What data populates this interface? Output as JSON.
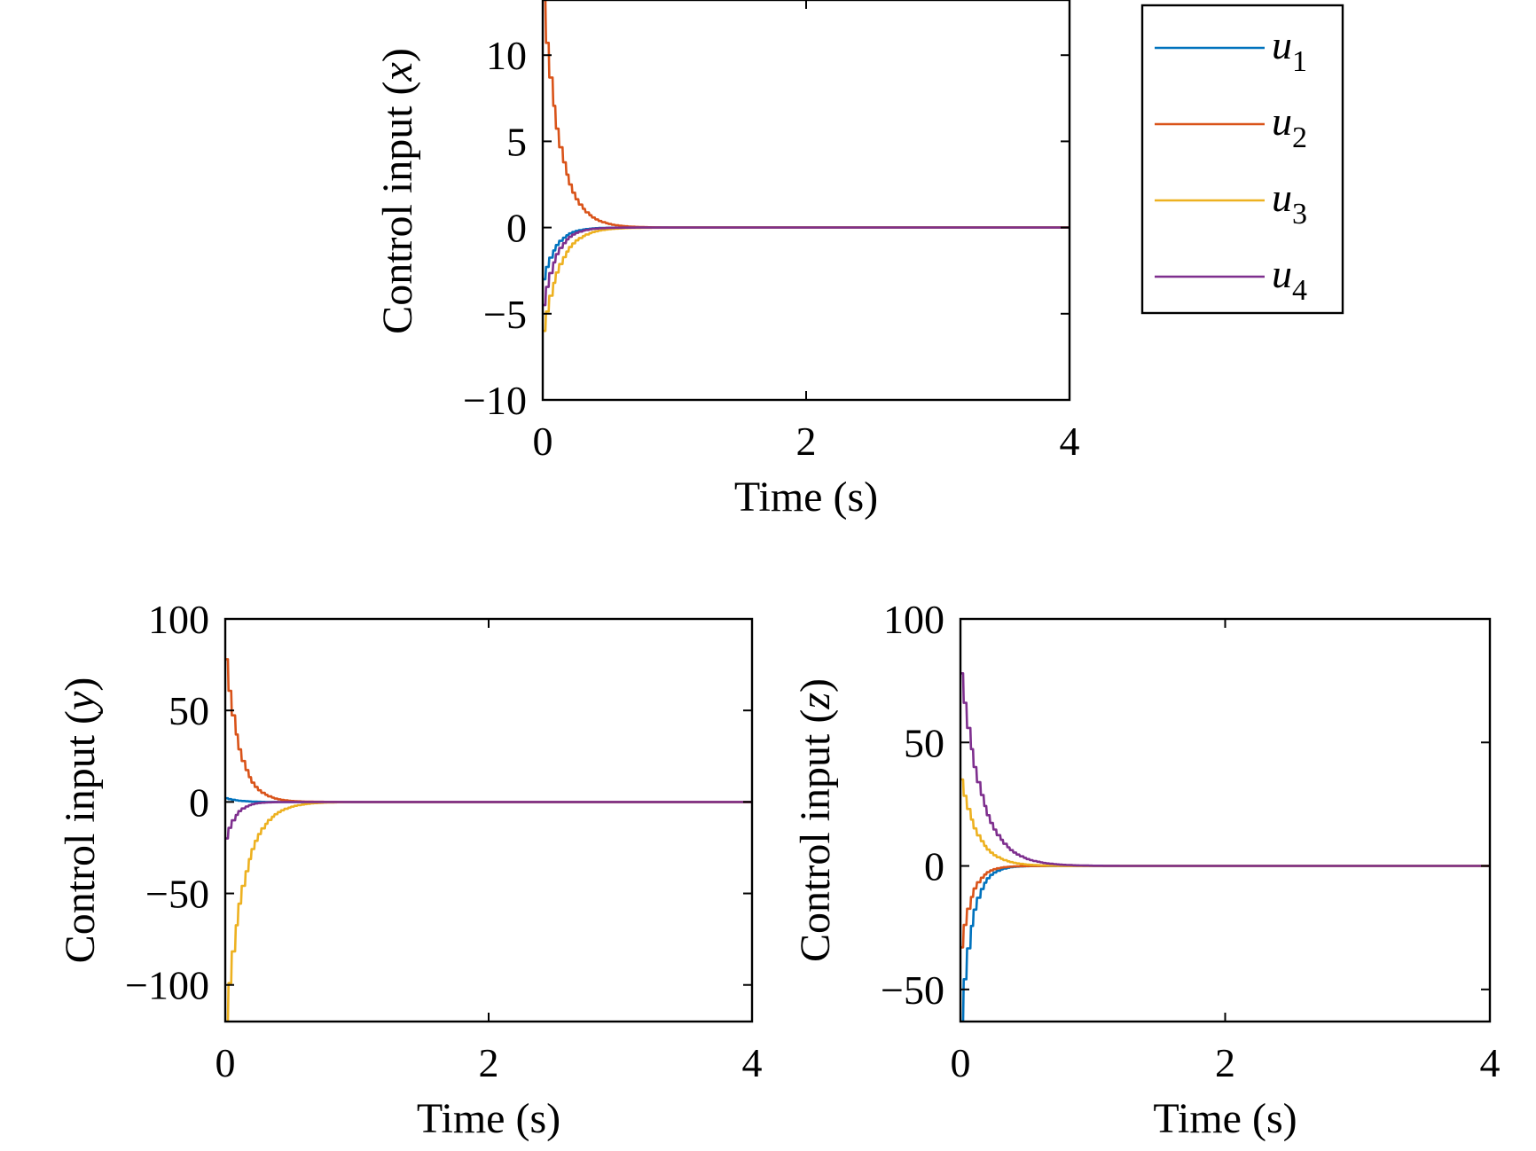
{
  "chart_data": [
    {
      "type": "line",
      "panel": "x",
      "xlabel": "Time (s)",
      "ylabel": "Control input (x)",
      "ylabel_parts": [
        "Control input (",
        "x",
        ")"
      ],
      "xlim": [
        0,
        4
      ],
      "ylim": [
        -10,
        13.2
      ],
      "xticks": [
        0,
        2,
        4
      ],
      "yticks": [
        -10,
        -5,
        0,
        5,
        10
      ],
      "xtick_labels": [
        "0",
        "2",
        "4"
      ],
      "ytick_labels": [
        "−10",
        "−5",
        "0",
        "5",
        "10"
      ],
      "grid": false,
      "series": [
        {
          "name": "u1",
          "initial": -3.0,
          "tau": 0.1,
          "overshoot": 0.25
        },
        {
          "name": "u2",
          "initial": 13.2,
          "tau": 0.12,
          "overshoot": 0.0
        },
        {
          "name": "u3",
          "initial": -6.0,
          "tau": 0.12,
          "overshoot": 0.0
        },
        {
          "name": "u4",
          "initial": -4.5,
          "tau": 0.1,
          "overshoot": 0.3
        }
      ]
    },
    {
      "type": "line",
      "panel": "y",
      "xlabel": "Time (s)",
      "ylabel": "Control input (y)",
      "ylabel_parts": [
        "Control input (",
        "y",
        ")"
      ],
      "xlim": [
        0,
        4
      ],
      "ylim": [
        -120,
        100
      ],
      "xticks": [
        0,
        2,
        4
      ],
      "yticks": [
        -100,
        -50,
        0,
        50,
        100
      ],
      "xtick_labels": [
        "0",
        "2",
        "4"
      ],
      "ytick_labels": [
        "−100",
        "−50",
        "0",
        "50",
        "100"
      ],
      "grid": false,
      "series": [
        {
          "name": "u1",
          "initial": 2.0,
          "tau": 0.15,
          "overshoot": 1.0
        },
        {
          "name": "u2",
          "initial": 78.0,
          "tau": 0.1,
          "overshoot": 0.0
        },
        {
          "name": "u3",
          "initial": -120.0,
          "tau": 0.13,
          "overshoot": 0.0
        },
        {
          "name": "u4",
          "initial": -20.0,
          "tau": 0.08,
          "overshoot": 2.0
        }
      ]
    },
    {
      "type": "line",
      "panel": "z",
      "xlabel": "Time (s)",
      "ylabel": "Control input (z)",
      "ylabel_parts": [
        "Control input (",
        "z",
        ")"
      ],
      "xlim": [
        0,
        4
      ],
      "ylim": [
        -63,
        100
      ],
      "xticks": [
        0,
        2,
        4
      ],
      "yticks": [
        -50,
        0,
        50,
        100
      ],
      "xtick_labels": [
        "0",
        "2",
        "4"
      ],
      "ytick_labels": [
        "−50",
        "0",
        "50",
        "100"
      ],
      "grid": false,
      "series": [
        {
          "name": "u1",
          "initial": -63.0,
          "tau": 0.08,
          "overshoot": 1.0
        },
        {
          "name": "u2",
          "initial": -33.0,
          "tau": 0.08,
          "overshoot": 1.0
        },
        {
          "name": "u3",
          "initial": 35.0,
          "tau": 0.12,
          "overshoot": 0.0
        },
        {
          "name": "u4",
          "initial": 78.0,
          "tau": 0.15,
          "overshoot": 0.0
        }
      ]
    }
  ],
  "legend": {
    "placement": "top-right",
    "entries": [
      {
        "base": "u",
        "sub": "1",
        "color": "#0072BD"
      },
      {
        "base": "u",
        "sub": "2",
        "color": "#D95319"
      },
      {
        "base": "u",
        "sub": "3",
        "color": "#EDB120"
      },
      {
        "base": "u",
        "sub": "4",
        "color": "#7E2F8E"
      }
    ]
  },
  "colors": {
    "u1": "#0072BD",
    "u2": "#D95319",
    "u3": "#EDB120",
    "u4": "#7E2F8E"
  }
}
